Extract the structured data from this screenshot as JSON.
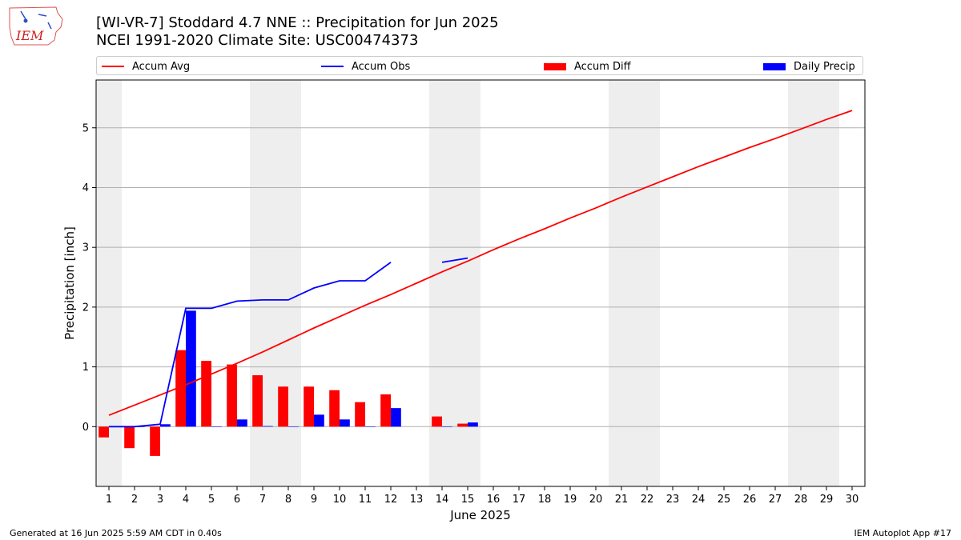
{
  "header": {
    "logo_text": "IEM",
    "title_line1": "[WI-VR-7] Stoddard 4.7 NNE :: Precipitation for Jun 2025",
    "title_line2": "NCEI 1991-2020 Climate Site: USC00474373"
  },
  "colors": {
    "accum_avg": "#ff0000",
    "accum_obs": "#0000ff",
    "accum_diff": "#ff0000",
    "daily_precip": "#0000ff",
    "weekend_shade": "#eeeeee",
    "grid": "#b0b0b0"
  },
  "chart_data": {
    "type": "bar",
    "xlabel": "June 2025",
    "ylabel": "Precipitation [inch]",
    "xlim": [
      0.5,
      30.5
    ],
    "ylim": [
      -1.0,
      5.8
    ],
    "y_ticks": [
      0,
      1,
      2,
      3,
      4,
      5
    ],
    "x_ticks": [
      1,
      2,
      3,
      4,
      5,
      6,
      7,
      8,
      9,
      10,
      11,
      12,
      13,
      14,
      15,
      16,
      17,
      18,
      19,
      20,
      21,
      22,
      23,
      24,
      25,
      26,
      27,
      28,
      29,
      30
    ],
    "grid": "horizontal",
    "legend_placement": "top",
    "weekend_shaded_days": [
      [
        1
      ],
      [
        7,
        8
      ],
      [
        14,
        15
      ],
      [
        21,
        22
      ],
      [
        28,
        29
      ]
    ],
    "series": [
      {
        "name": "Accum Avg",
        "kind": "line",
        "x": [
          1,
          2,
          3,
          4,
          5,
          6,
          7,
          8,
          9,
          10,
          11,
          12,
          13,
          14,
          15,
          16,
          17,
          18,
          19,
          20,
          21,
          22,
          23,
          24,
          25,
          26,
          27,
          28,
          29,
          30
        ],
        "values": [
          0.19,
          0.36,
          0.53,
          0.7,
          0.88,
          1.06,
          1.25,
          1.45,
          1.65,
          1.84,
          2.03,
          2.21,
          2.4,
          2.59,
          2.77,
          2.96,
          3.14,
          3.31,
          3.49,
          3.66,
          3.84,
          4.01,
          4.18,
          4.35,
          4.51,
          4.67,
          4.82,
          4.98,
          5.14,
          5.29
        ]
      },
      {
        "name": "Accum Obs",
        "kind": "line",
        "x": [
          1,
          2,
          3,
          4,
          5,
          6,
          7,
          8,
          9,
          10,
          11,
          12,
          13,
          14,
          15
        ],
        "values": [
          0.0,
          0.0,
          0.04,
          1.98,
          1.98,
          2.1,
          2.12,
          2.12,
          2.32,
          2.44,
          2.44,
          2.75,
          null,
          2.75,
          2.82
        ]
      },
      {
        "name": "Accum Diff",
        "kind": "bar",
        "x": [
          1,
          2,
          3,
          4,
          5,
          6,
          7,
          8,
          9,
          10,
          11,
          12,
          13,
          14,
          15
        ],
        "values": [
          -0.18,
          -0.36,
          -0.49,
          1.28,
          1.1,
          1.04,
          0.86,
          0.67,
          0.67,
          0.61,
          0.41,
          0.54,
          null,
          0.17,
          0.05
        ]
      },
      {
        "name": "Daily Precip",
        "kind": "bar",
        "x": [
          1,
          2,
          3,
          4,
          5,
          6,
          7,
          8,
          9,
          10,
          11,
          12,
          13,
          14,
          15
        ],
        "values": [
          0.0,
          0.0,
          0.04,
          1.94,
          0.0,
          0.12,
          0.01,
          0.0,
          0.2,
          0.12,
          0.0,
          0.31,
          null,
          0.0,
          0.07
        ]
      }
    ]
  },
  "footer": {
    "left": "Generated at 16 Jun 2025 5:59 AM CDT in 0.40s",
    "right": "IEM Autoplot App #17"
  }
}
